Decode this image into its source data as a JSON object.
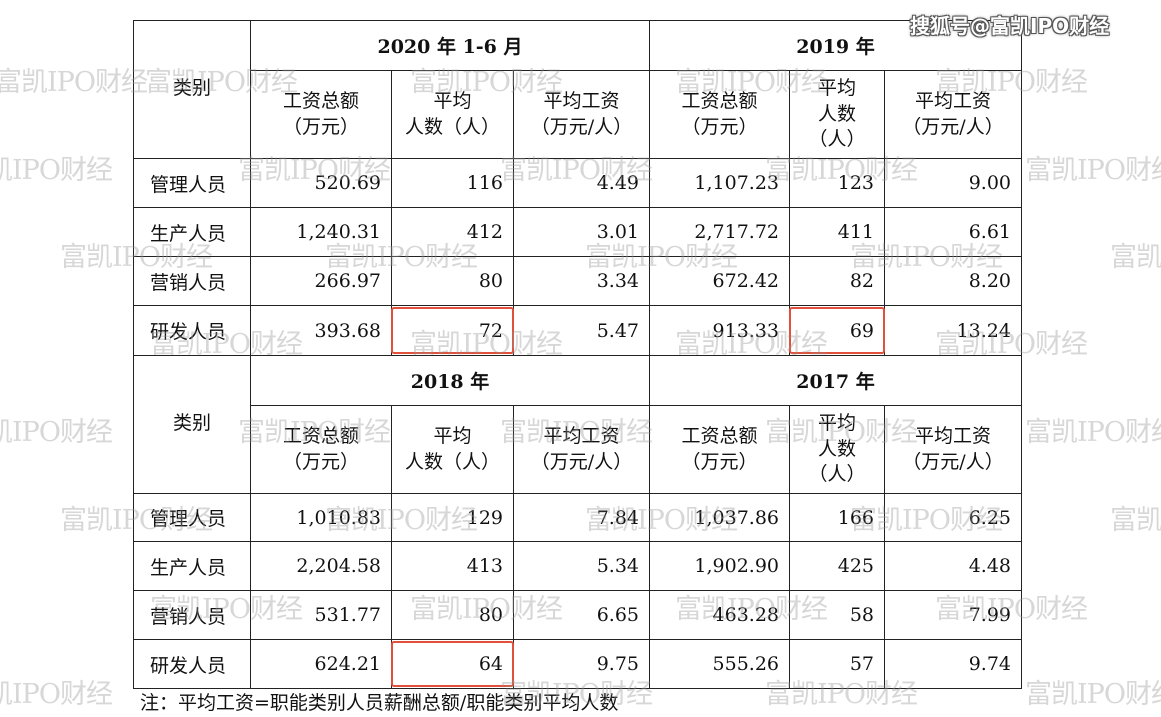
{
  "brand": "搜狐号@富凯IPO财经",
  "watermark": "富凯IPO财经",
  "table": {
    "category_header": "类别",
    "column_headers": {
      "total": [
        "工资总额",
        "（万元）"
      ],
      "headcount": [
        "平均",
        "人数（人）"
      ],
      "headcount_stacked": [
        "平均",
        "人数",
        "（人）"
      ],
      "avg_salary": [
        "平均工资",
        "（万元/人）"
      ]
    },
    "blocks": [
      {
        "periods": [
          "2020 年 1-6 月",
          "2019 年"
        ],
        "rows": [
          {
            "category": "管理人员",
            "values": [
              "520.69",
              "116",
              "4.49",
              "1,107.23",
              "123",
              "9.00"
            ]
          },
          {
            "category": "生产人员",
            "values": [
              "1,240.31",
              "412",
              "3.01",
              "2,717.72",
              "411",
              "6.61"
            ]
          },
          {
            "category": "营销人员",
            "values": [
              "266.97",
              "80",
              "3.34",
              "672.42",
              "82",
              "8.20"
            ]
          },
          {
            "category": "研发人员",
            "values": [
              "393.68",
              "72",
              "5.47",
              "913.33",
              "69",
              "13.24"
            ]
          }
        ]
      },
      {
        "periods": [
          "2018 年",
          "2017 年"
        ],
        "rows": [
          {
            "category": "管理人员",
            "values": [
              "1,010.83",
              "129",
              "7.84",
              "1,037.86",
              "166",
              "6.25"
            ]
          },
          {
            "category": "生产人员",
            "values": [
              "2,204.58",
              "413",
              "5.34",
              "1,902.90",
              "425",
              "4.48"
            ]
          },
          {
            "category": "营销人员",
            "values": [
              "531.77",
              "80",
              "6.65",
              "463.28",
              "58",
              "7.99"
            ]
          },
          {
            "category": "研发人员",
            "values": [
              "624.21",
              "64",
              "9.75",
              "555.26",
              "57",
              "9.74"
            ]
          }
        ]
      }
    ],
    "highlight_color": "#e0503a"
  },
  "note": "注：平均工资=职能类别人员薪酬总额/职能类别平均人数"
}
